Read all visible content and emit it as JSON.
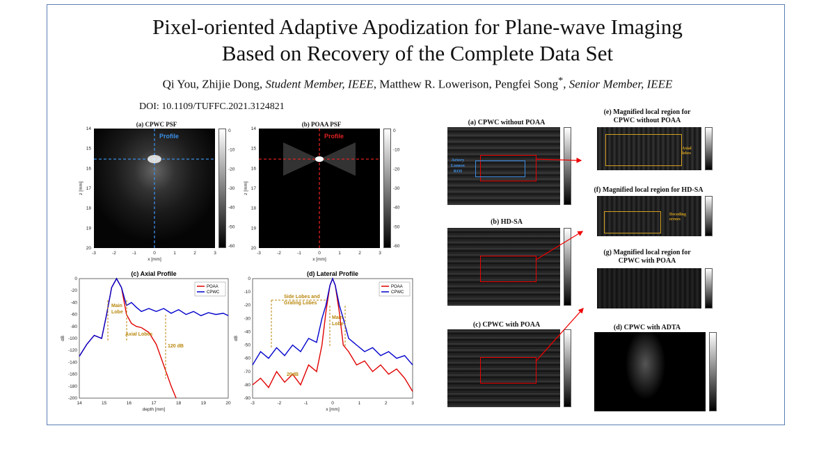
{
  "title_line1": "Pixel-oriented Adaptive Apodization for Plane-wave Imaging",
  "title_line2": "Based on Recovery of the Complete Data Set",
  "authors": {
    "plain1": "Qi You, Zhijie Dong, ",
    "it1": "Student Member, IEEE",
    "plain2": ", Matthew R. Lowerison, Pengfei Song",
    "star": "*",
    "comma": ", ",
    "it2": "Senior Member, IEEE"
  },
  "doi": "DOI: 10.1109/TUFFC.2021.3124821",
  "panels": {
    "cpwc_psf": "(a) CPWC PSF",
    "poaa_psf": "(b) POAA PSF",
    "axial": "(c) Axial Profile",
    "lateral": "(d) Lateral Profile",
    "r_a": "(a) CPWC without POAA",
    "r_b": "(b) HD-SA",
    "r_c": "(c) CPWC with POAA",
    "r_e1": "(e) Magnified local region for",
    "r_e2": "CPWC without POAA",
    "r_f": "(f) Magnified local region for HD-SA",
    "r_g1": "(g) Magnified local region for",
    "r_g2": "CPWC with POAA",
    "r_d": "(d) CPWC with ADTA"
  },
  "labels": {
    "profile": "Profile",
    "zmm": "z [mm]",
    "xmm": "x [mm]",
    "db": "dB",
    "depth": "depth [mm]",
    "main_lobe1": "Main",
    "main_lobe2": "Lobe",
    "axial_lobes": "Axial Lobes",
    "db120": "120 dB",
    "side1": "Side Lobes and",
    "side2": "Grating Lobes",
    "db20": "20dB",
    "artery1": "Artery",
    "artery2": "Lumen",
    "artery3": "ROI",
    "axial_lobes2a": "Axial",
    "axial_lobes2b": "lobes",
    "decoding1": "Decoding",
    "decoding2": "errors"
  },
  "psf_cbar_ticks": [
    "0",
    "-10",
    "-20",
    "-30",
    "-40",
    "-50",
    "-60"
  ],
  "psf_z_ticks": [
    "14",
    "15",
    "16",
    "17",
    "18",
    "19",
    "20"
  ],
  "psf_x_ticks": [
    "-3",
    "-2",
    "-1",
    "0",
    "1",
    "2",
    "3"
  ],
  "chart_data": [
    {
      "type": "line",
      "title": "(c) Axial Profile",
      "xlabel": "depth [mm]",
      "ylabel": "dB",
      "xlim": [
        14,
        20
      ],
      "ylim": [
        -200,
        0
      ],
      "x_ticks": [
        "14",
        "15",
        "16",
        "17",
        "18",
        "19",
        "20"
      ],
      "y_ticks": [
        "0",
        "-20",
        "-40",
        "-60",
        "-80",
        "-100",
        "-120",
        "-140",
        "-160",
        "-180",
        "-200"
      ],
      "series": [
        {
          "name": "POAA",
          "color": "#e00000",
          "x": [
            14,
            14.3,
            14.6,
            14.9,
            15.1,
            15.3,
            15.5,
            15.7,
            15.9,
            16.1,
            16.3,
            16.5,
            16.8,
            17.1,
            17.4,
            17.7,
            17.9
          ],
          "y": [
            -130,
            -110,
            -95,
            -100,
            -60,
            -15,
            0,
            -15,
            -60,
            -75,
            -80,
            -82,
            -90,
            -110,
            -145,
            -180,
            -200
          ]
        },
        {
          "name": "CPWC",
          "color": "#0000cc",
          "x": [
            14,
            14.3,
            14.6,
            14.9,
            15.1,
            15.3,
            15.5,
            15.7,
            15.9,
            16.1,
            16.3,
            16.5,
            16.8,
            17.1,
            17.4,
            17.7,
            18,
            18.3,
            18.6,
            18.9,
            19.2,
            19.5,
            19.8,
            20
          ],
          "y": [
            -130,
            -110,
            -95,
            -100,
            -60,
            -15,
            0,
            -15,
            -45,
            -40,
            -48,
            -55,
            -50,
            -55,
            -50,
            -58,
            -52,
            -60,
            -55,
            -62,
            -57,
            -60,
            -58,
            -62
          ]
        }
      ],
      "legend": "top-right"
    },
    {
      "type": "line",
      "title": "(d) Lateral Profile",
      "xlabel": "x [mm]",
      "ylabel": "dB",
      "xlim": [
        -3,
        3
      ],
      "ylim": [
        -90,
        0
      ],
      "x_ticks": [
        "-3",
        "-2",
        "-1",
        "0",
        "1",
        "2",
        "3"
      ],
      "y_ticks": [
        "0",
        "-10",
        "-20",
        "-30",
        "-40",
        "-50",
        "-60",
        "-70",
        "-80",
        "-90"
      ],
      "series": [
        {
          "name": "POAA",
          "color": "#e00000",
          "x": [
            -3,
            -2.7,
            -2.4,
            -2.1,
            -1.8,
            -1.5,
            -1.2,
            -0.9,
            -0.6,
            -0.4,
            -0.25,
            -0.1,
            0,
            0.1,
            0.25,
            0.4,
            0.6,
            0.9,
            1.2,
            1.5,
            1.8,
            2.1,
            2.4,
            2.7,
            3
          ],
          "y": [
            -80,
            -75,
            -82,
            -70,
            -78,
            -72,
            -80,
            -65,
            -70,
            -50,
            -25,
            -5,
            0,
            -5,
            -25,
            -50,
            -55,
            -65,
            -62,
            -70,
            -65,
            -72,
            -68,
            -75,
            -85
          ]
        },
        {
          "name": "CPWC",
          "color": "#0000cc",
          "x": [
            -3,
            -2.7,
            -2.4,
            -2.1,
            -1.8,
            -1.5,
            -1.2,
            -0.9,
            -0.6,
            -0.4,
            -0.25,
            -0.1,
            0,
            0.1,
            0.25,
            0.4,
            0.6,
            0.9,
            1.2,
            1.5,
            1.8,
            2.1,
            2.4,
            2.7,
            3
          ],
          "y": [
            -65,
            -55,
            -60,
            -52,
            -58,
            -50,
            -55,
            -45,
            -48,
            -30,
            -20,
            -5,
            0,
            -5,
            -20,
            -30,
            -45,
            -50,
            -55,
            -52,
            -58,
            -55,
            -60,
            -58,
            -65
          ]
        }
      ],
      "legend": "top-right"
    }
  ]
}
